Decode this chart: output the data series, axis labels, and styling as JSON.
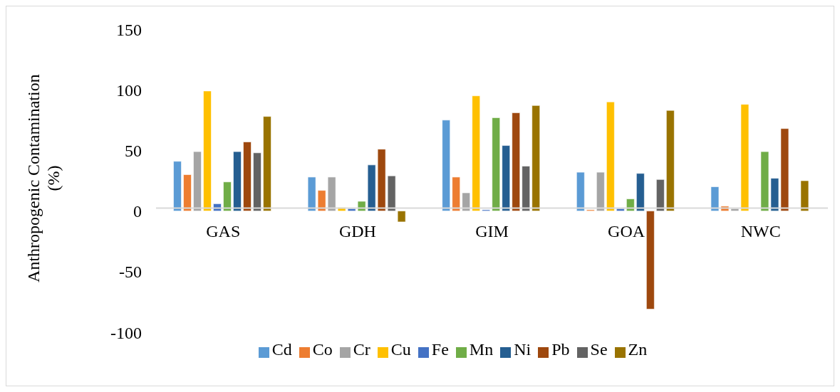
{
  "chart_data": {
    "type": "bar",
    "ylabel": "Anthropogenic Contamination (%)",
    "categories": [
      "GAS",
      "GDH",
      "GIM",
      "GOA",
      "NWC"
    ],
    "series": [
      {
        "name": "Cd",
        "color": "#5b9bd5",
        "values": [
          41,
          28,
          75,
          32,
          20
        ]
      },
      {
        "name": "Co",
        "color": "#ed7d31",
        "values": [
          30,
          17,
          28,
          1,
          4
        ]
      },
      {
        "name": "Cr",
        "color": "#a5a5a5",
        "values": [
          49,
          28,
          15,
          32,
          2
        ]
      },
      {
        "name": "Cu",
        "color": "#ffc000",
        "values": [
          99,
          3,
          95,
          90,
          88
        ]
      },
      {
        "name": "Fe",
        "color": "#4472c4",
        "values": [
          6,
          2,
          1,
          2,
          null
        ]
      },
      {
        "name": "Mn",
        "color": "#70ad47",
        "values": [
          24,
          8,
          77,
          10,
          49
        ]
      },
      {
        "name": "Ni",
        "color": "#255e91",
        "values": [
          49,
          38,
          54,
          31,
          27
        ]
      },
      {
        "name": "Pb",
        "color": "#9e480e",
        "values": [
          57,
          51,
          81,
          -81,
          68
        ]
      },
      {
        "name": "Se",
        "color": "#636363",
        "values": [
          48,
          29,
          37,
          26,
          null
        ]
      },
      {
        "name": "Zn",
        "color": "#997300",
        "values": [
          78,
          -9,
          87,
          83,
          25
        ]
      }
    ],
    "ylim": [
      -100,
      150
    ],
    "yticks": [
      -100,
      -50,
      0,
      50,
      100,
      150
    ],
    "grid": false,
    "legend": "bottom"
  }
}
